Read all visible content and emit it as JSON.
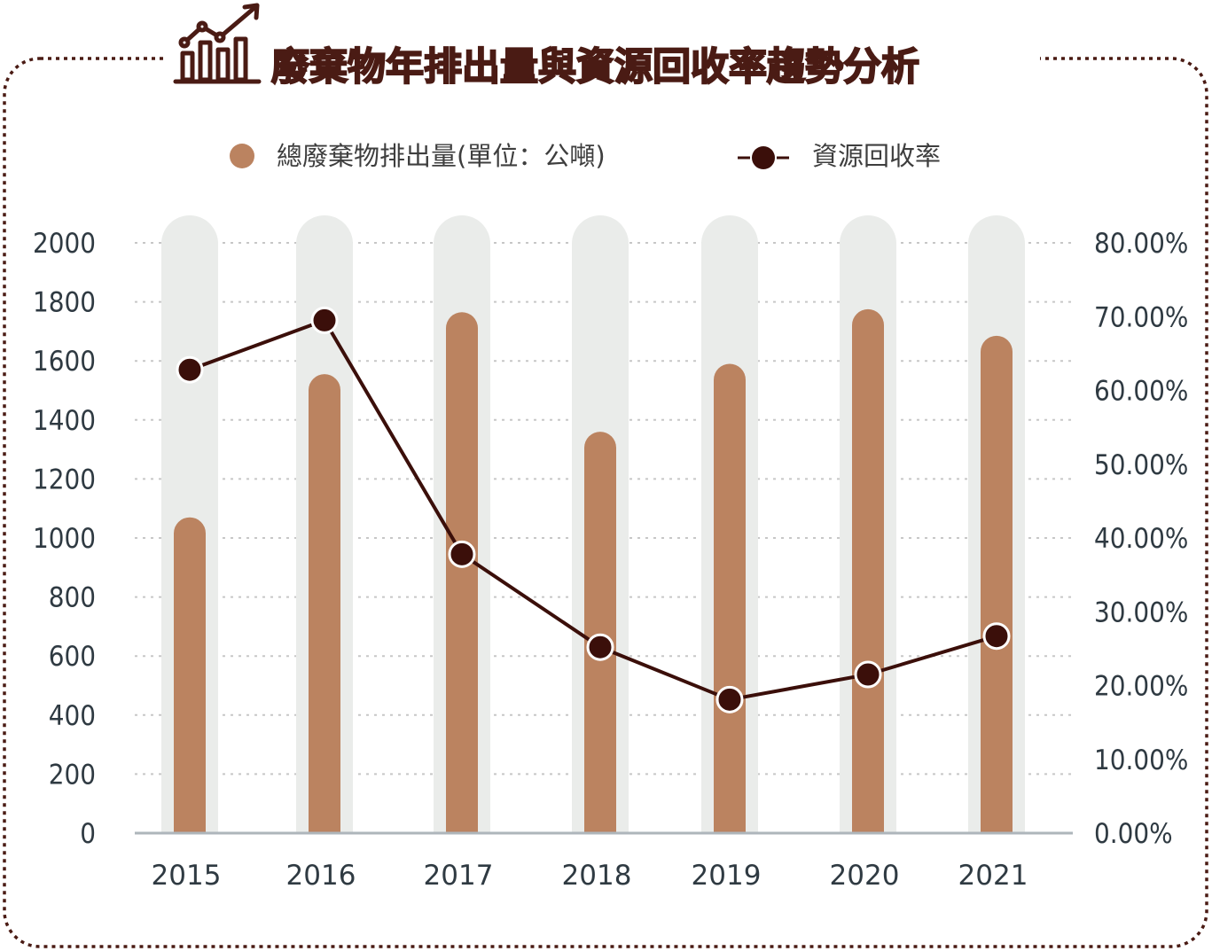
{
  "colors": {
    "frame": "#4a1b14",
    "bar": "#bb8360",
    "bar_track": "#eaecea",
    "line": "#3b0f0a",
    "marker_fill": "#3b0f0a",
    "marker_stroke": "#ffffff",
    "grid": "#c7c7c7",
    "axis": "#aeb6bb",
    "tick_text": "#2f3a42"
  },
  "title": {
    "icon": "bar-chart-trend-icon",
    "text": "廢棄物年排出量與資源回收率趨勢分析"
  },
  "chart_data": {
    "type": "bar",
    "title": "廢棄物年排出量與資源回收率趨勢分析",
    "categories": [
      "2015",
      "2016",
      "2017",
      "2018",
      "2019",
      "2020",
      "2021"
    ],
    "series": [
      {
        "name": "總廢棄物排出量(單位：公噸)",
        "type": "bar",
        "axis": "left",
        "values": [
          1070,
          1555,
          1765,
          1360,
          1590,
          1775,
          1685
        ]
      },
      {
        "name": "資源回收率",
        "type": "line",
        "axis": "right",
        "values": [
          62.8,
          69.5,
          37.8,
          25.2,
          18.1,
          21.5,
          26.7
        ]
      }
    ],
    "y_left": {
      "ylim": [
        0,
        2000
      ],
      "ticks": [
        "0",
        "200",
        "400",
        "600",
        "800",
        "1000",
        "1200",
        "1400",
        "1600",
        "1800",
        "2000"
      ]
    },
    "y_right": {
      "ylim": [
        0,
        80
      ],
      "ticks": [
        "0.00%",
        "10.00%",
        "20.00%",
        "30.00%",
        "40.00%",
        "50.00%",
        "60.00%",
        "70.00%",
        "80.00%"
      ]
    },
    "grid": true,
    "legend_position": "top"
  }
}
